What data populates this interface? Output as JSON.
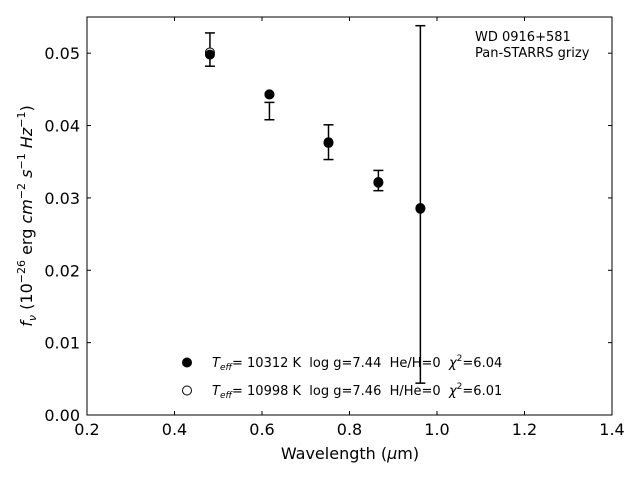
{
  "chart_data": {
    "type": "scatter",
    "xlabel": "Wavelength (µm)",
    "ylabel": "f_ν (10^-26 erg cm^-2 s^-1 Hz^-1)",
    "xlim": [
      0.2,
      1.4
    ],
    "ylim": [
      0.0,
      0.055
    ],
    "x_ticks": [
      0.2,
      0.4,
      0.6,
      0.8,
      1.0,
      1.2,
      1.4
    ],
    "x_tick_labels": [
      "0.2",
      "0.4",
      "0.6",
      "0.8",
      "1.0",
      "1.2",
      "1.4"
    ],
    "y_ticks": [
      0.0,
      0.01,
      0.02,
      0.03,
      0.04,
      0.05
    ],
    "y_tick_labels": [
      "0.00",
      "0.01",
      "0.02",
      "0.03",
      "0.04",
      "0.05"
    ],
    "grid": false,
    "annotation": [
      "WD 0916+581",
      "Pan-STARRS grizy"
    ],
    "observed": {
      "x": [
        0.481,
        0.617,
        0.752,
        0.866,
        0.962
      ],
      "y": [
        0.0505,
        0.042,
        0.0377,
        0.0324,
        0.0291
      ],
      "yerr": [
        0.0023,
        0.0012,
        0.0024,
        0.0014,
        0.0247
      ]
    },
    "series": [
      {
        "name": "T_eff= 10312 K  log g=7.44  He/H=0  χ²=6.04",
        "marker": "filled-circle",
        "x": [
          0.481,
          0.617,
          0.752,
          0.866,
          0.962
        ],
        "y": [
          0.0498,
          0.0443,
          0.0376,
          0.0322,
          0.0285
        ]
      },
      {
        "name": "T_eff= 10998 K  log g=7.46  H/He=0  χ²=6.01",
        "marker": "open-circle",
        "x": [
          0.481,
          0.617,
          0.752,
          0.866,
          0.962
        ],
        "y": [
          0.0501,
          0.0443,
          0.0377,
          0.0321,
          0.0286
        ]
      }
    ],
    "legend": {
      "placement": "lower-center",
      "entries": [
        {
          "teff_label": "T",
          "teff_sub": "eff",
          "text": "= 10312 K  log g=7.44  He/H=0  ",
          "chi_label": "χ",
          "chi_sup": "2",
          "chi_value": "=6.04"
        },
        {
          "teff_label": "T",
          "teff_sub": "eff",
          "text": "= 10998 K  log g=7.46  H/He=0  ",
          "chi_label": "χ",
          "chi_sup": "2",
          "chi_value": "=6.01"
        }
      ]
    }
  }
}
